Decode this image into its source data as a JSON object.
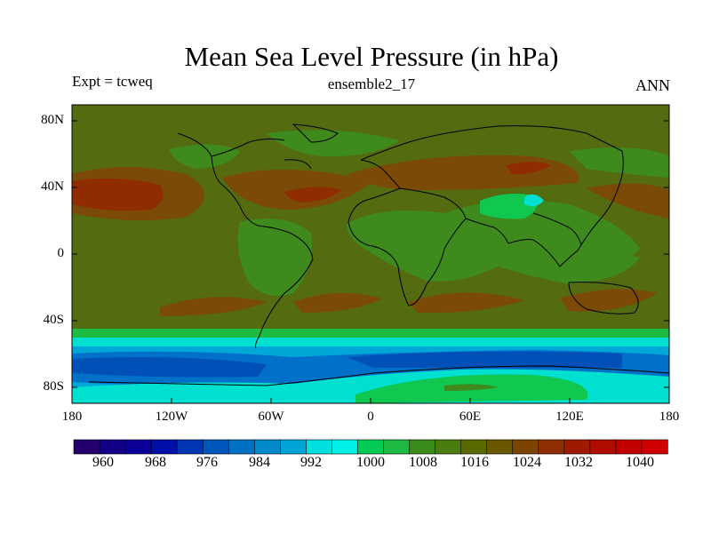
{
  "header": {
    "title": "Mean Sea Level Pressure (in hPa)",
    "experiment": "Expt = tcweq",
    "ensemble": "ensemble2_17",
    "season": "ANN"
  },
  "axes": {
    "lat_labels": [
      "80N",
      "40N",
      "0",
      "40S",
      "80S"
    ],
    "lat_values": [
      80,
      40,
      0,
      -40,
      -80
    ],
    "lon_labels": [
      "180",
      "120W",
      "60W",
      "0",
      "60E",
      "120E",
      "180"
    ],
    "lon_values": [
      -180,
      -120,
      -60,
      0,
      60,
      120,
      180
    ]
  },
  "colorbar": {
    "labels": [
      "960",
      "968",
      "976",
      "984",
      "992",
      "1000",
      "1008",
      "1016",
      "1024",
      "1032",
      "1040"
    ],
    "colors": [
      "#24006e",
      "#130089",
      "#0a0099",
      "#0010a8",
      "#0035b3",
      "#0057bb",
      "#0071c2",
      "#0089cb",
      "#00a5d8",
      "#00dfdf",
      "#00f0e8",
      "#00cc55",
      "#1dbb44",
      "#3b8b1a",
      "#4a7c10",
      "#5a6a00",
      "#6a5800",
      "#7d4400",
      "#8f2e00",
      "#a01a00",
      "#b00c00",
      "#c20000",
      "#d00000"
    ],
    "unit": "hPa"
  },
  "map_colors": {
    "background": "#556b10",
    "high_1020": "#7a4a06",
    "high_1028": "#8f2d00",
    "low_1012": "#3e8a1c",
    "low_1004": "#10c850",
    "band_1000": "#00e0d0",
    "band_992": "#00a8d8",
    "band_984": "#0070c8",
    "band_976": "#0050b8",
    "coast": "#000000"
  }
}
